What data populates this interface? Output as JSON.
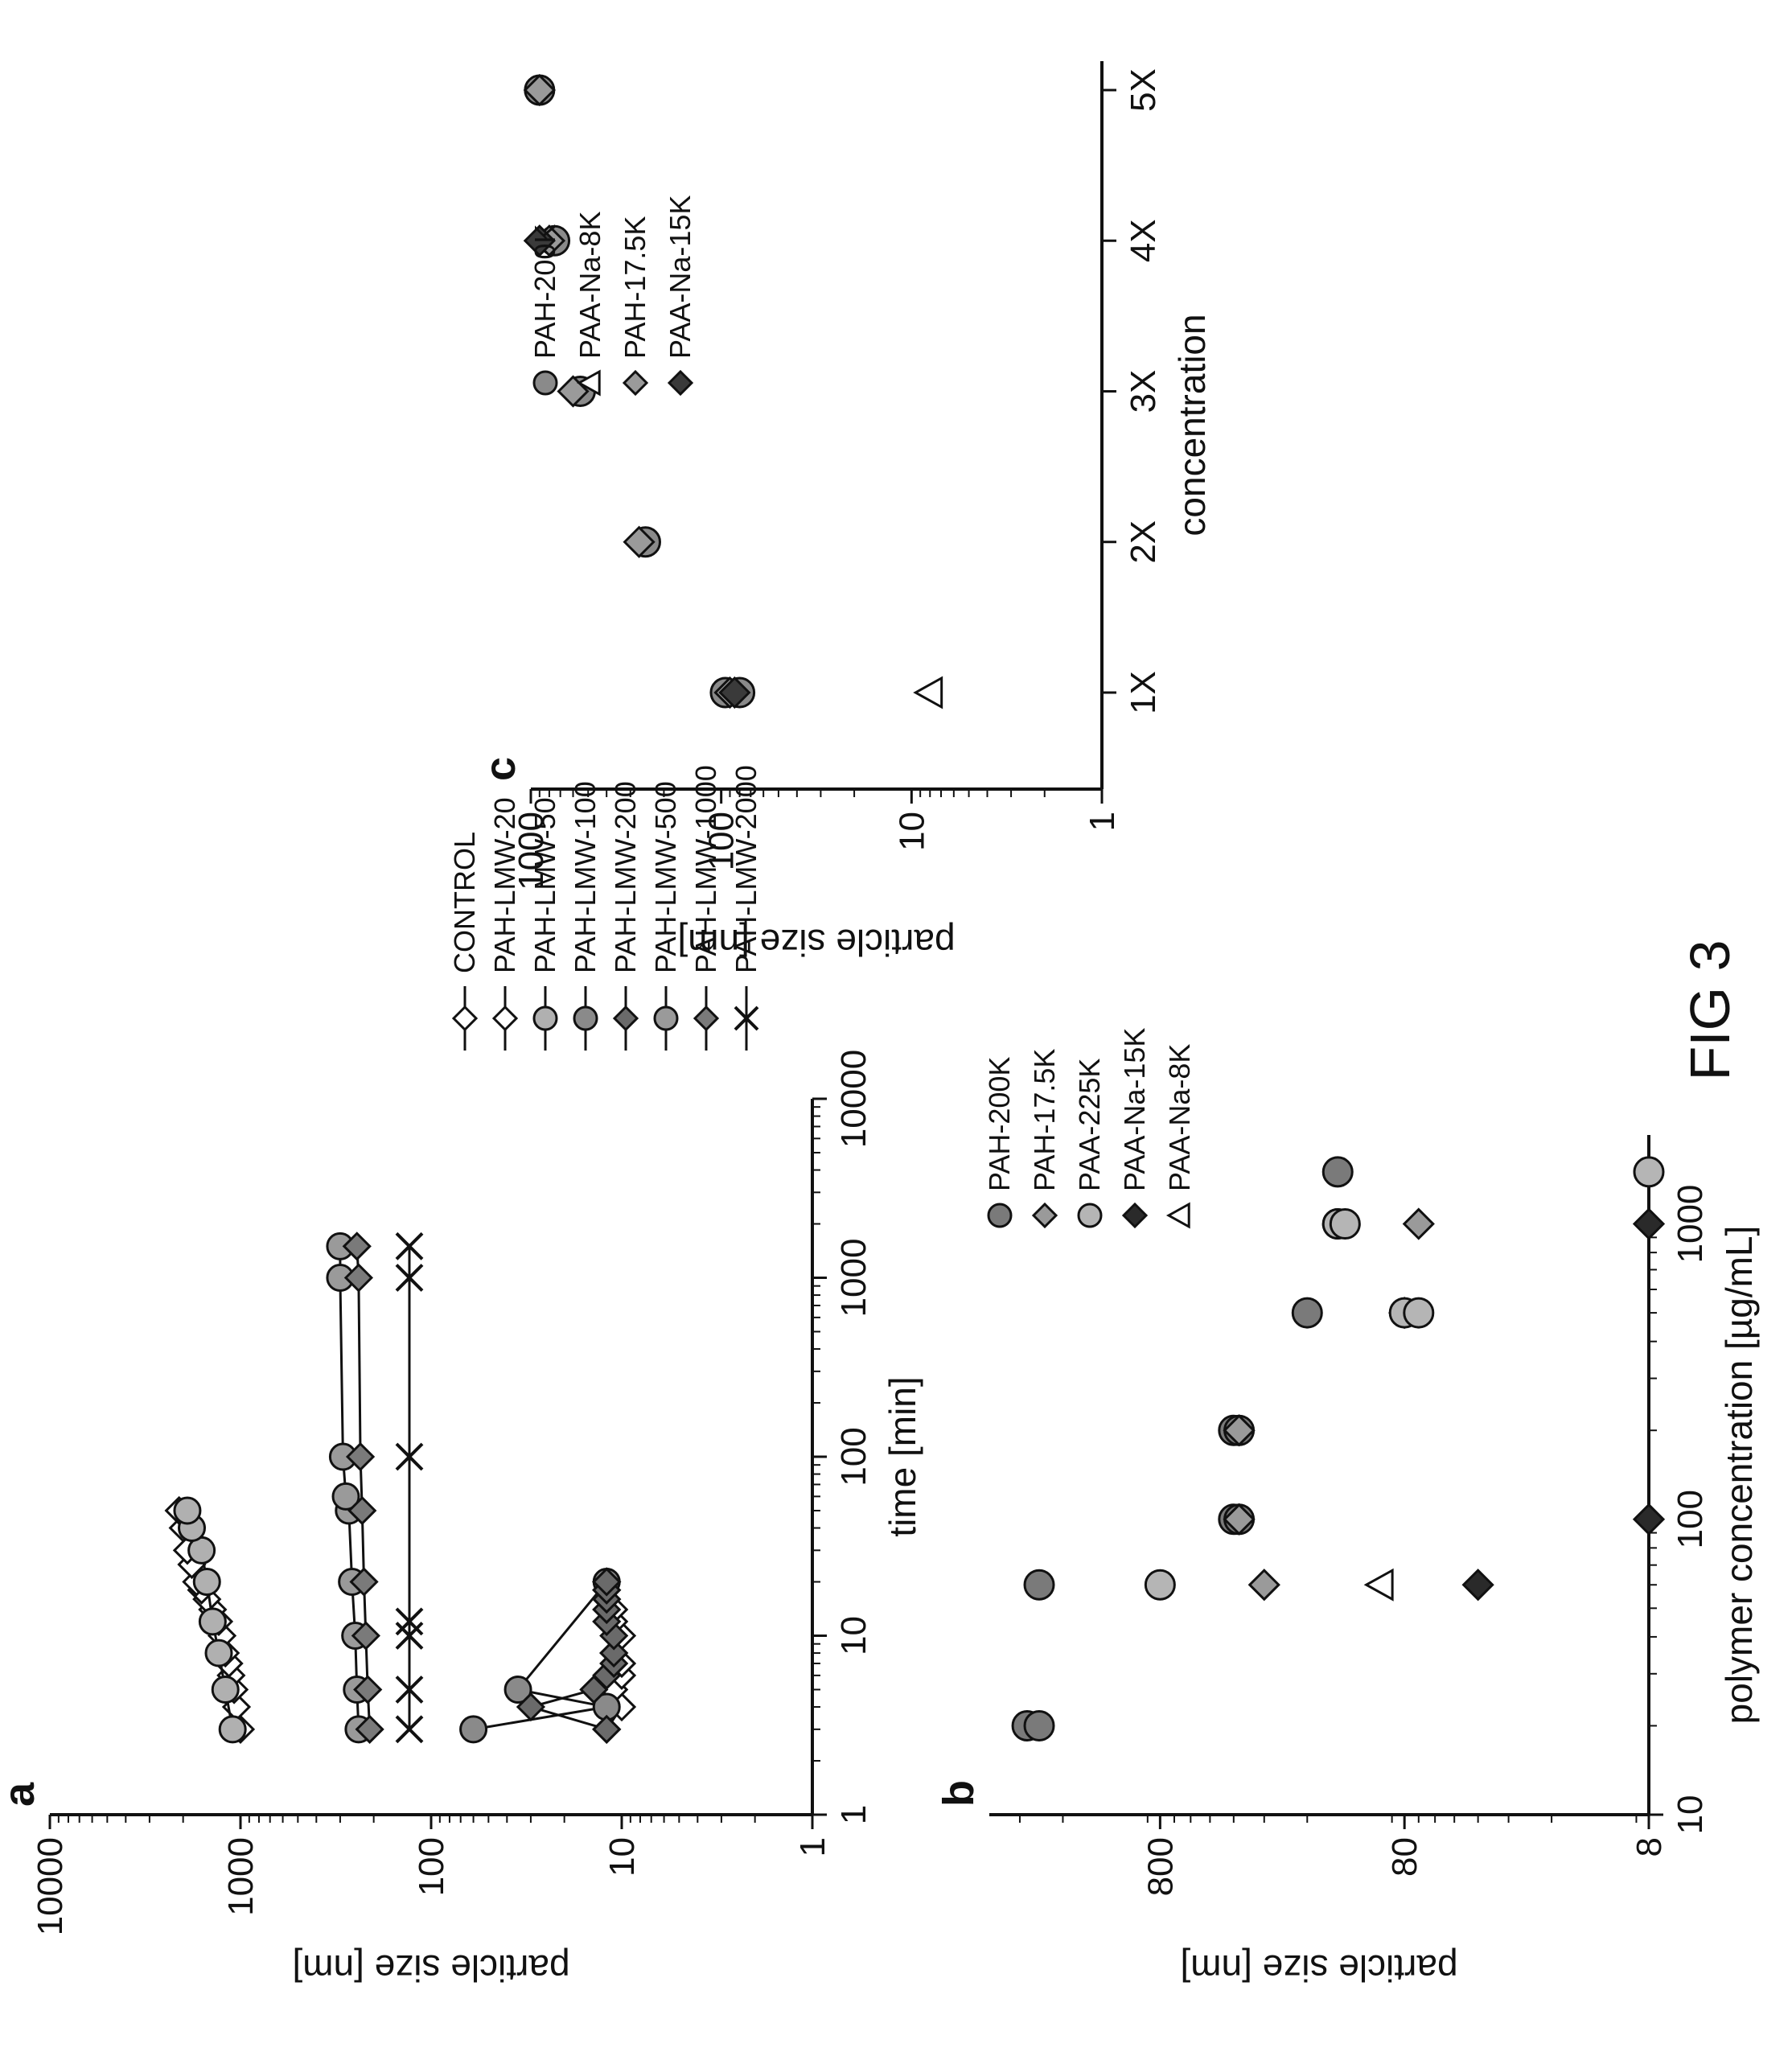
{
  "figure": {
    "title": "FIG 3"
  },
  "chart_data": [
    {
      "panel": "a",
      "type": "line",
      "xlabel": "time [min]",
      "ylabel": "particle size [nm]",
      "x_scale": "log",
      "y_scale": "log",
      "xlim": [
        1,
        10000
      ],
      "ylim": [
        1,
        10000
      ],
      "x_ticks": [
        "1",
        "10",
        "100",
        "1000",
        "10000"
      ],
      "y_ticks": [
        "1",
        "10",
        "100",
        "1000",
        "10000"
      ],
      "legend_position": "right",
      "series": [
        {
          "name": "CONTROL",
          "marker": "diamond-open",
          "color": "#ffffff",
          "x": [
            3,
            4,
            5,
            6,
            7,
            8,
            10,
            12,
            14,
            16,
            18,
            20
          ],
          "y": [
            12,
            10,
            11,
            10,
            10,
            11,
            10,
            11,
            11,
            12,
            12,
            12
          ]
        },
        {
          "name": "PAH-LMW-20",
          "marker": "diamond-open",
          "color": "#ffffff",
          "x": [
            3,
            4,
            5,
            6,
            7,
            8,
            10,
            12,
            14,
            16,
            18,
            20,
            25,
            30,
            40,
            50
          ],
          "y": [
            1000,
            1050,
            1080,
            1120,
            1150,
            1200,
            1250,
            1300,
            1400,
            1500,
            1600,
            1700,
            1800,
            1900,
            2000,
            2100
          ]
        },
        {
          "name": "PAH-LMW-50",
          "marker": "circle",
          "color": "#b0b0b0",
          "x": [
            3,
            5,
            8,
            12,
            20,
            30,
            40,
            50
          ],
          "y": [
            1100,
            1200,
            1300,
            1400,
            1500,
            1600,
            1800,
            1900
          ]
        },
        {
          "name": "PAH-LMW-100",
          "marker": "circle",
          "color": "#8a8a8a",
          "x": [
            3,
            4,
            5,
            20
          ],
          "y": [
            60,
            12,
            35,
            12
          ]
        },
        {
          "name": "PAH-LMW-200",
          "marker": "diamond",
          "color": "#6a6a6a",
          "x": [
            3,
            4,
            5,
            6,
            7,
            8,
            10,
            12,
            14,
            16,
            18,
            20
          ],
          "y": [
            12,
            30,
            14,
            12,
            11,
            11,
            11,
            12,
            12,
            12,
            12,
            12
          ]
        },
        {
          "name": "PAH-LMW-500",
          "marker": "circle",
          "color": "#9a9a9a",
          "x": [
            3,
            5,
            10,
            20,
            50,
            60,
            100,
            1000,
            1500
          ],
          "y": [
            240,
            245,
            250,
            260,
            270,
            280,
            290,
            300,
            300
          ]
        },
        {
          "name": "PAH-LMW-1000",
          "marker": "diamond",
          "color": "#7a7a7a",
          "x": [
            3,
            5,
            10,
            20,
            50,
            100,
            1000,
            1500
          ],
          "y": [
            210,
            215,
            220,
            225,
            230,
            235,
            240,
            245
          ]
        },
        {
          "name": "PAH-LMW-2000",
          "marker": "x",
          "color": "#111111",
          "x": [
            3,
            5,
            10,
            12,
            100,
            1000,
            1500
          ],
          "y": [
            130,
            130,
            130,
            130,
            130,
            130,
            130
          ]
        }
      ]
    },
    {
      "panel": "b",
      "type": "scatter",
      "xlabel": "polymer concentration [µg/mL]",
      "ylabel": "particle size [nm]",
      "x_scale": "log",
      "y_scale": "log",
      "xlim": [
        10,
        2000
      ],
      "ylim": [
        8,
        4000
      ],
      "x_ticks": [
        "10",
        "100",
        "1000"
      ],
      "y_ticks": [
        "8",
        "80",
        "800"
      ],
      "legend_position": "top-right",
      "series": [
        {
          "name": "PAH-200K",
          "marker": "circle",
          "color": "#7a7a7a",
          "x": [
            20,
            20,
            60,
            100,
            100,
            200,
            200,
            500,
            1000,
            1500
          ],
          "y": [
            2800,
            2500,
            2500,
            400,
            380,
            400,
            380,
            200,
            150,
            150
          ]
        },
        {
          "name": "PAH-17.5K",
          "marker": "diamond",
          "color": "#9a9a9a",
          "x": [
            60,
            100,
            200,
            500,
            1000
          ],
          "y": [
            300,
            380,
            380,
            80,
            70
          ]
        },
        {
          "name": "PAA-225K",
          "marker": "circle",
          "color": "#b5b5b5",
          "x": [
            60,
            500,
            500,
            1000,
            1000,
            1500
          ],
          "y": [
            800,
            80,
            70,
            150,
            140,
            8
          ]
        },
        {
          "name": "PAA-Na-15K",
          "marker": "diamond",
          "color": "#2a2a2a",
          "x": [
            60,
            100,
            1000
          ],
          "y": [
            40,
            8,
            8
          ]
        },
        {
          "name": "PAA-Na-8K",
          "marker": "triangle-open",
          "color": "#ffffff",
          "x": [
            60
          ],
          "y": [
            100
          ]
        }
      ]
    },
    {
      "panel": "c",
      "type": "scatter",
      "xlabel": "concentration",
      "ylabel": "particle size [nm]",
      "x_scale": "categorical",
      "y_scale": "log",
      "ylim": [
        1,
        1000
      ],
      "categories": [
        "1X",
        "2X",
        "3X",
        "4X",
        "5X"
      ],
      "y_ticks": [
        "1",
        "10",
        "100",
        "1000"
      ],
      "legend_position": "top-right",
      "series": [
        {
          "name": "PAH-200K",
          "marker": "circle",
          "color": "#8a8a8a",
          "x": [
            "1X",
            "1X",
            "2X",
            "3X",
            "4X",
            "5X"
          ],
          "y": [
            80,
            95,
            250,
            550,
            750,
            900
          ]
        },
        {
          "name": "PAA-Na-8K",
          "marker": "triangle-open",
          "color": "#ffffff",
          "x": [
            "1X"
          ],
          "y": [
            8
          ]
        },
        {
          "name": "PAH-17.5K",
          "marker": "diamond",
          "color": "#9a9a9a",
          "x": [
            "1X",
            "2X",
            "3X",
            "4X",
            "5X"
          ],
          "y": [
            90,
            270,
            600,
            800,
            900
          ]
        },
        {
          "name": "PAA-Na-15K",
          "marker": "diamond",
          "color": "#3a3a3a",
          "x": [
            "1X",
            "4X"
          ],
          "y": [
            85,
            900
          ]
        }
      ]
    }
  ]
}
